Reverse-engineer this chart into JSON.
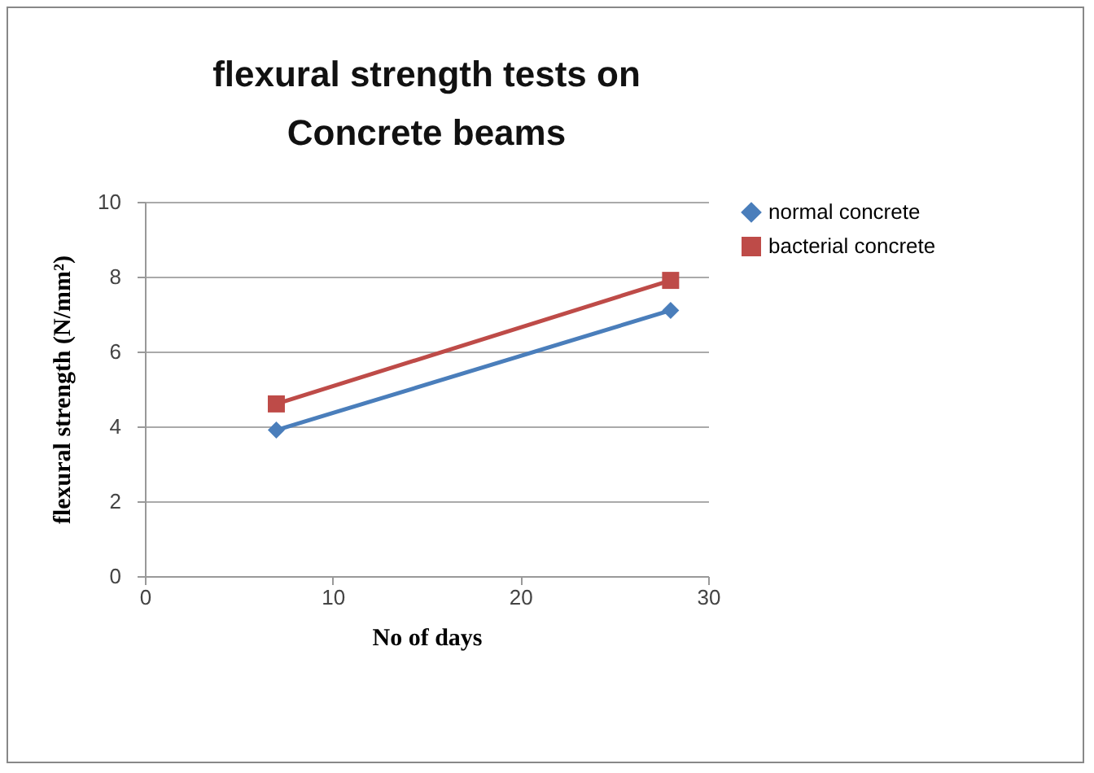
{
  "chart_data": {
    "type": "line",
    "title": "flexural strength tests on Concrete beams",
    "xlabel": "No of days",
    "ylabel": "flexural strength (N/mm²)",
    "x": [
      7,
      28
    ],
    "series": [
      {
        "name": "normal concrete",
        "color": "#4a7ebb",
        "values": [
          3.9,
          7.1
        ],
        "marker": "diamond"
      },
      {
        "name": "bacterial concrete",
        "color": "#be4b48",
        "values": [
          4.6,
          7.9
        ],
        "marker": "square"
      }
    ],
    "xlim": [
      0,
      30
    ],
    "xticks": [
      0,
      10,
      20,
      30
    ],
    "ylim": [
      0,
      10
    ],
    "yticks": [
      0,
      2,
      4,
      6,
      8,
      10
    ],
    "grid": "y",
    "legend": "right",
    "line_style": "solid"
  }
}
